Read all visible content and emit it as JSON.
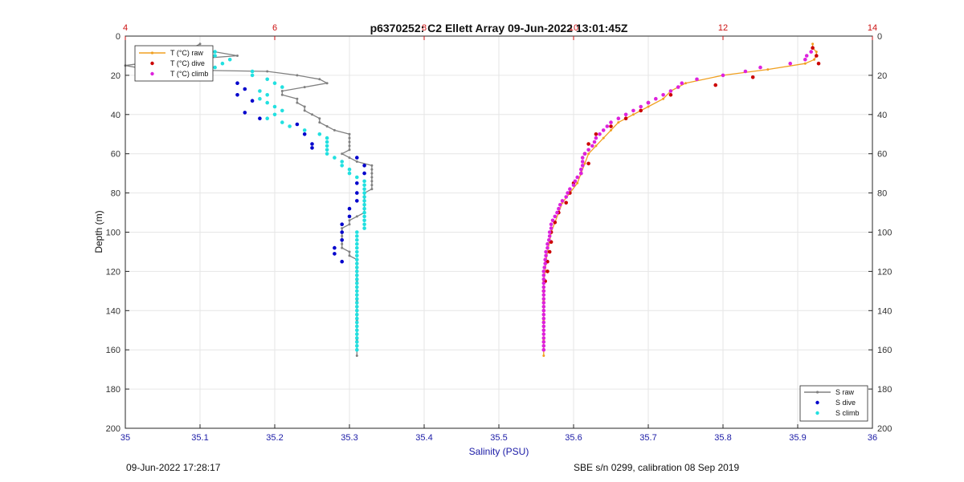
{
  "chart_data": {
    "type": "scatter",
    "title": "p6370252: C2 Ellett Array 09-Jun-2022 13:01:45Z",
    "xlabel": "Salinity (PSU)",
    "ylabel": "Depth (m)",
    "xlim": [
      35,
      36
    ],
    "ylim": [
      0,
      200
    ],
    "y_reversed": true,
    "x2lim": [
      4,
      14
    ],
    "x_ticks": [
      "35",
      "35.1",
      "35.2",
      "35.3",
      "35.4",
      "35.5",
      "35.6",
      "35.7",
      "35.8",
      "35.9",
      "36"
    ],
    "x2_ticks": [
      "4",
      "6",
      "8",
      "10",
      "12",
      "14"
    ],
    "y_ticks": [
      "0",
      "20",
      "40",
      "60",
      "80",
      "100",
      "120",
      "140",
      "160",
      "180",
      "200"
    ],
    "grid": true,
    "legends": [
      {
        "placement": "top-left",
        "entries": [
          "T (°C) raw",
          "T (°C) dive",
          "T (°C) climb"
        ]
      },
      {
        "placement": "bottom-right",
        "entries": [
          "S raw",
          "S dive",
          "S climb"
        ]
      }
    ],
    "colors": {
      "s_raw": "#808080",
      "s_dive": "#0000cc",
      "s_climb": "#22e0e0",
      "t_raw": "#f0a020",
      "t_dive": "#cc0000",
      "t_climb": "#dd22dd",
      "top_axis": "#cc1111",
      "bottom_axis": "#1a1aa6"
    },
    "series": [
      {
        "name": "S raw",
        "axis": "salinity",
        "marker": "line+dot",
        "color": "#808080",
        "depth": [
          4,
          6,
          8,
          10,
          12,
          14,
          15,
          17,
          18,
          20,
          22,
          24,
          26,
          28,
          30,
          32,
          34,
          36,
          38,
          40,
          42,
          44,
          46,
          48,
          50,
          52,
          54,
          56,
          58,
          60,
          62,
          64,
          66,
          68,
          70,
          72,
          74,
          76,
          78,
          80,
          82,
          84,
          86,
          88,
          90,
          92,
          94,
          96,
          98,
          100,
          102,
          104,
          106,
          108,
          110,
          112,
          114,
          116,
          118,
          120,
          125,
          130,
          135,
          140,
          145,
          150,
          155,
          160,
          163
        ],
        "values": [
          35.1,
          35.09,
          35.12,
          35.15,
          35.08,
          35.02,
          35.0,
          35.03,
          35.19,
          35.23,
          35.26,
          35.27,
          35.24,
          35.21,
          35.21,
          35.23,
          35.23,
          35.24,
          35.24,
          35.25,
          35.26,
          35.26,
          35.27,
          35.28,
          35.3,
          35.3,
          35.3,
          35.3,
          35.3,
          35.29,
          35.3,
          35.31,
          35.33,
          35.33,
          35.33,
          35.33,
          35.33,
          35.33,
          35.33,
          35.32,
          35.32,
          35.32,
          35.32,
          35.32,
          35.32,
          35.31,
          35.3,
          35.3,
          35.29,
          35.29,
          35.29,
          35.29,
          35.29,
          35.29,
          35.3,
          35.3,
          35.31,
          35.31,
          35.31,
          35.31,
          35.31,
          35.31,
          35.31,
          35.31,
          35.31,
          35.31,
          35.31,
          35.31,
          35.31
        ]
      },
      {
        "name": "S dive",
        "axis": "salinity",
        "marker": "dot",
        "color": "#0000cc",
        "depth": [
          10,
          12,
          14,
          21,
          24,
          27,
          30,
          33,
          39,
          42,
          45,
          50,
          55,
          57,
          62,
          66,
          70,
          75,
          80,
          84,
          88,
          92,
          96,
          100,
          104,
          108,
          111,
          115
        ],
        "values": [
          35.1,
          35.09,
          35.08,
          35.1,
          35.15,
          35.16,
          35.15,
          35.17,
          35.16,
          35.18,
          35.23,
          35.24,
          35.25,
          35.25,
          35.31,
          35.32,
          35.32,
          35.31,
          35.31,
          35.31,
          35.3,
          35.3,
          35.29,
          35.29,
          35.29,
          35.28,
          35.28,
          35.29
        ]
      },
      {
        "name": "S climb",
        "axis": "salinity",
        "marker": "dot",
        "color": "#22e0e0",
        "depth": [
          8,
          10,
          12,
          14,
          16,
          18,
          20,
          22,
          24,
          26,
          28,
          30,
          32,
          34,
          36,
          38,
          40,
          42,
          44,
          46,
          48,
          50,
          52,
          54,
          56,
          58,
          60,
          62,
          64,
          66,
          68,
          70,
          72,
          74,
          76,
          78,
          80,
          82,
          84,
          86,
          88,
          90,
          92,
          94,
          96,
          98,
          100,
          102,
          104,
          106,
          108,
          110,
          112,
          114,
          116,
          118,
          120,
          122,
          124,
          126,
          128,
          130,
          132,
          134,
          136,
          138,
          140,
          142,
          144,
          146,
          148,
          150,
          152,
          154,
          156,
          158,
          160
        ],
        "values": [
          35.12,
          35.12,
          35.14,
          35.13,
          35.12,
          35.17,
          35.17,
          35.19,
          35.2,
          35.21,
          35.18,
          35.19,
          35.18,
          35.19,
          35.2,
          35.21,
          35.2,
          35.19,
          35.21,
          35.22,
          35.24,
          35.26,
          35.27,
          35.27,
          35.27,
          35.27,
          35.27,
          35.28,
          35.29,
          35.29,
          35.3,
          35.3,
          35.31,
          35.32,
          35.32,
          35.32,
          35.32,
          35.32,
          35.32,
          35.32,
          35.32,
          35.32,
          35.32,
          35.32,
          35.32,
          35.32,
          35.31,
          35.31,
          35.31,
          35.31,
          35.31,
          35.31,
          35.31,
          35.31,
          35.31,
          35.31,
          35.31,
          35.31,
          35.31,
          35.31,
          35.31,
          35.31,
          35.31,
          35.31,
          35.31,
          35.31,
          35.31,
          35.31,
          35.31,
          35.31,
          35.31,
          35.31,
          35.31,
          35.31,
          35.31,
          35.31,
          35.31
        ]
      },
      {
        "name": "T (°C) raw",
        "axis": "temperature",
        "marker": "line+dot",
        "color": "#f0a020",
        "depth": [
          4,
          6,
          8,
          10,
          12,
          14,
          17,
          20,
          24,
          28,
          32,
          36,
          40,
          44,
          48,
          52,
          56,
          60,
          65,
          70,
          75,
          80,
          85,
          90,
          95,
          100,
          105,
          110,
          115,
          120,
          125,
          130,
          135,
          140,
          145,
          150,
          155,
          160,
          163
        ],
        "values": [
          13.2,
          13.2,
          13.25,
          13.25,
          13.22,
          13.1,
          12.6,
          12.0,
          11.5,
          11.3,
          11.2,
          11.0,
          10.8,
          10.6,
          10.5,
          10.4,
          10.3,
          10.2,
          10.15,
          10.1,
          10.05,
          9.95,
          9.85,
          9.8,
          9.75,
          9.7,
          9.68,
          9.65,
          9.63,
          9.62,
          9.6,
          9.6,
          9.6,
          9.6,
          9.6,
          9.6,
          9.6,
          9.6,
          9.6
        ]
      },
      {
        "name": "T (°C) dive",
        "axis": "temperature",
        "marker": "dot",
        "color": "#cc0000",
        "depth": [
          6,
          10,
          14,
          21,
          25,
          30,
          34,
          38,
          42,
          46,
          50,
          55,
          60,
          65,
          70,
          75,
          80,
          85,
          90,
          95,
          100,
          105,
          110,
          115,
          120,
          125,
          130
        ],
        "values": [
          13.2,
          13.25,
          13.28,
          12.4,
          11.9,
          11.3,
          11.0,
          10.9,
          10.7,
          10.5,
          10.3,
          10.2,
          10.15,
          10.2,
          10.1,
          10.0,
          9.95,
          9.9,
          9.8,
          9.75,
          9.7,
          9.7,
          9.68,
          9.65,
          9.65,
          9.62,
          9.6
        ]
      },
      {
        "name": "T (°C) climb",
        "axis": "temperature",
        "marker": "dot",
        "color": "#dd22dd",
        "depth": [
          8,
          10,
          12,
          14,
          16,
          18,
          20,
          22,
          24,
          26,
          28,
          30,
          32,
          34,
          36,
          38,
          40,
          42,
          44,
          46,
          48,
          50,
          52,
          54,
          56,
          58,
          60,
          62,
          64,
          66,
          68,
          70,
          72,
          74,
          76,
          78,
          80,
          82,
          84,
          86,
          88,
          90,
          92,
          94,
          96,
          98,
          100,
          102,
          104,
          106,
          108,
          110,
          112,
          114,
          116,
          118,
          120,
          122,
          124,
          126,
          128,
          130,
          132,
          134,
          136,
          138,
          140,
          142,
          144,
          146,
          148,
          150,
          152,
          154,
          156,
          158,
          160
        ],
        "values": [
          13.18,
          13.12,
          13.1,
          12.9,
          12.5,
          12.3,
          12.0,
          11.65,
          11.45,
          11.4,
          11.3,
          11.2,
          11.1,
          11.0,
          10.9,
          10.8,
          10.7,
          10.6,
          10.5,
          10.45,
          10.4,
          10.35,
          10.3,
          10.28,
          10.25,
          10.2,
          10.15,
          10.12,
          10.12,
          10.12,
          10.1,
          10.1,
          10.05,
          10.02,
          10.0,
          9.95,
          9.92,
          9.9,
          9.85,
          9.82,
          9.8,
          9.78,
          9.75,
          9.72,
          9.7,
          9.7,
          9.68,
          9.68,
          9.67,
          9.65,
          9.65,
          9.63,
          9.63,
          9.62,
          9.62,
          9.61,
          9.6,
          9.6,
          9.6,
          9.6,
          9.6,
          9.6,
          9.6,
          9.6,
          9.6,
          9.6,
          9.6,
          9.6,
          9.6,
          9.6,
          9.6,
          9.6,
          9.6,
          9.6,
          9.6,
          9.6,
          9.6
        ]
      }
    ]
  },
  "footer": {
    "left": "09-Jun-2022 17:28:17",
    "right": "SBE s/n 0299, calibration 08 Sep 2019"
  }
}
